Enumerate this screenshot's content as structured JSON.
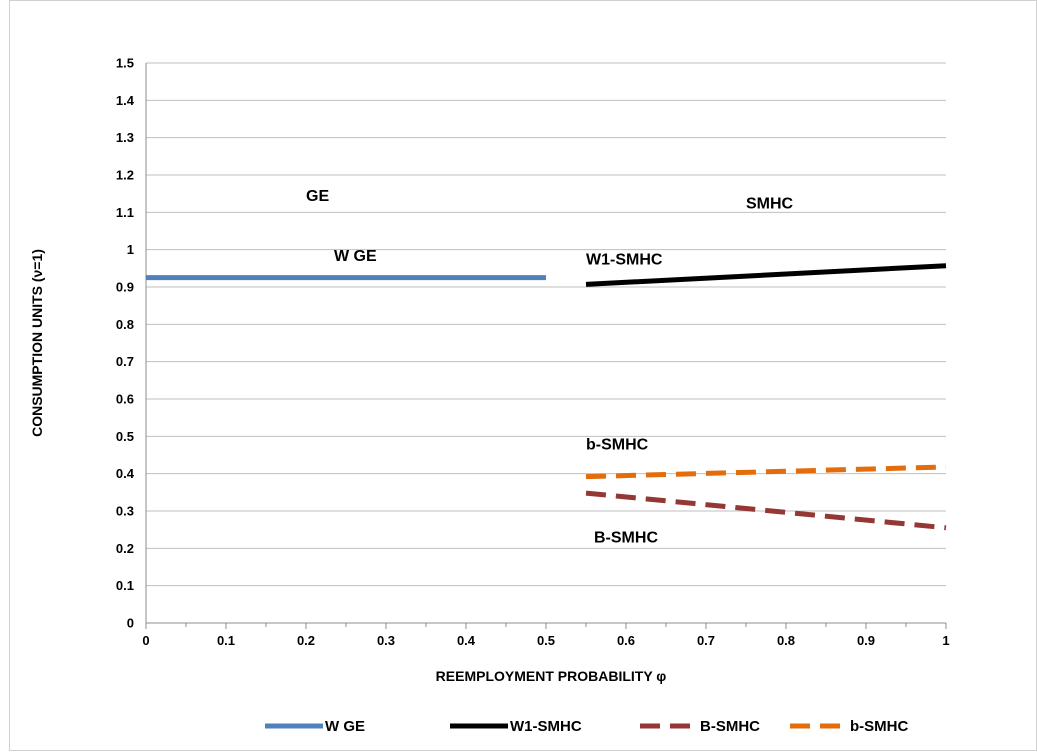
{
  "chart_data": {
    "type": "line",
    "xlabel": "REEMPLOYMENT PROBABILITY φ",
    "ylabel": "CONSUMPTION UNITS  (ν=1)",
    "xlim": [
      0,
      1
    ],
    "ylim": [
      0,
      1.5
    ],
    "x_ticks": [
      "0",
      "0.1",
      "0.2",
      "0.3",
      "0.4",
      "0.5",
      "0.6",
      "0.7",
      "0.8",
      "0.9",
      "1"
    ],
    "y_ticks": [
      "0",
      "0.1",
      "0.2",
      "0.3",
      "0.4",
      "0.5",
      "0.6",
      "0.7",
      "0.8",
      "0.9",
      "1",
      "1.1",
      "1.2",
      "1.3",
      "1.4",
      "1.5"
    ],
    "grid": "horizontal",
    "legend_position": "bottom",
    "series": [
      {
        "name": "W  GE",
        "color": "#4f81bd",
        "dash": "solid",
        "x": [
          0,
          0.5
        ],
        "y": [
          0.925,
          0.925
        ]
      },
      {
        "name": "W1-SMHC",
        "color": "#000000",
        "dash": "solid",
        "x": [
          0.55,
          1
        ],
        "y": [
          0.907,
          0.957
        ]
      },
      {
        "name": "B-SMHC",
        "color": "#953735",
        "dash": "dashed",
        "x": [
          0.55,
          1
        ],
        "y": [
          0.348,
          0.255
        ]
      },
      {
        "name": "b-SMHC",
        "color": "#e46c0a",
        "dash": "dashed",
        "x": [
          0.55,
          1
        ],
        "y": [
          0.392,
          0.418
        ]
      }
    ],
    "annotations": [
      {
        "text": "GE",
        "x": 0.2,
        "y": 1.13
      },
      {
        "text": "SMHC",
        "x": 0.75,
        "y": 1.11
      },
      {
        "text": "W GE",
        "x": 0.235,
        "y": 0.97
      },
      {
        "text": "W1-SMHC",
        "x": 0.55,
        "y": 0.96
      },
      {
        "text": "b-SMHC",
        "x": 0.55,
        "y": 0.465
      },
      {
        "text": "B-SMHC",
        "x": 0.56,
        "y": 0.215
      }
    ]
  }
}
